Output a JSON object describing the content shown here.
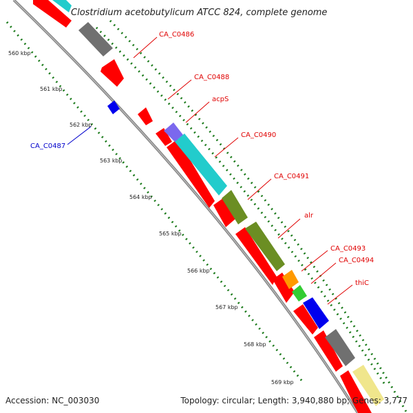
{
  "title": "Clostridium acetobutylicum ATCC 824, complete genome",
  "footer": {
    "accession": "Accession: NC_003030",
    "topology": "Topology: circular; Length: 3,940,880 bp; Genes: 3,777"
  },
  "ticks": [
    "560 kbp",
    "561 kbp",
    "562 kbp",
    "563 kbp",
    "564 kbp",
    "565 kbp",
    "566 kbp",
    "567 kbp",
    "568 kbp",
    "569 kbp"
  ],
  "gene_labels": [
    {
      "name": "CA_C0486",
      "color": "#e00000"
    },
    {
      "name": "CA_C0488",
      "color": "#e00000"
    },
    {
      "name": "acpS",
      "color": "#e00000"
    },
    {
      "name": "CA_C0490",
      "color": "#e00000"
    },
    {
      "name": "CA_C0491",
      "color": "#e00000"
    },
    {
      "name": "alr",
      "color": "#e00000"
    },
    {
      "name": "CA_C0493",
      "color": "#e00000"
    },
    {
      "name": "CA_C0494",
      "color": "#e00000"
    },
    {
      "name": "thiC",
      "color": "#e00000"
    },
    {
      "name": "CA_C0487",
      "color": "#0000cc"
    }
  ],
  "colors": {
    "cds": "#ff0000",
    "backbone": "#888888",
    "grid": "#1a7a1a",
    "gray_feature": "#707070",
    "cyan_feature": "#22cccc",
    "olive_feature": "#6b8e23",
    "orange_feature": "#ff9900",
    "green_feature": "#33cc33",
    "blue_feature": "#0000ee",
    "purple_feature": "#7b68ee",
    "yellow_feature": "#f0e68c"
  }
}
